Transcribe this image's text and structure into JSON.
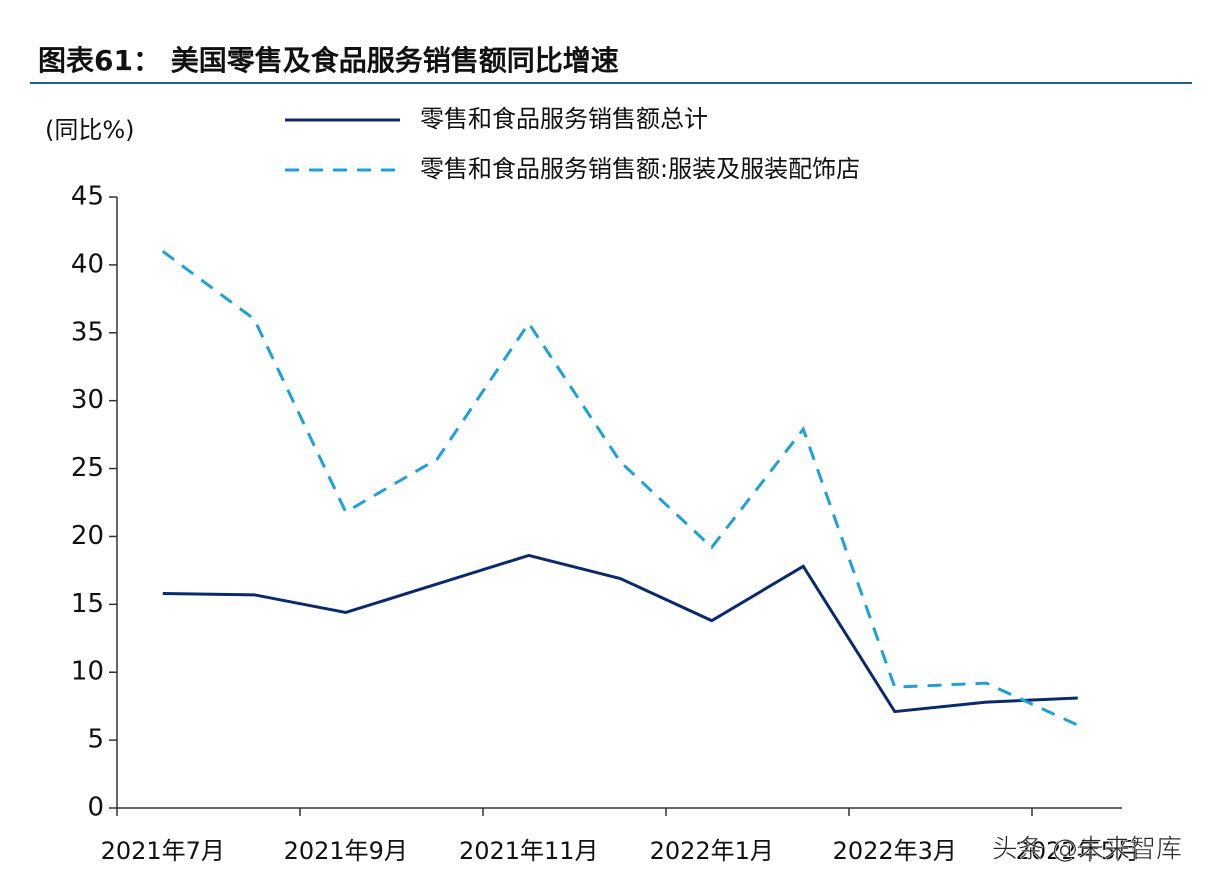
{
  "chart_data": {
    "type": "line",
    "title": "图表61：  美国零售及食品服务销售额同比增速",
    "y_label": "(同比%)",
    "categories": [
      "2021年7月",
      null,
      "2021年9月",
      null,
      "2021年11月",
      null,
      "2022年1月",
      null,
      "2022年3月",
      null,
      "2022年5月"
    ],
    "series": [
      {
        "name": "零售和食品服务销售额总计",
        "color": "#0b2a6b",
        "dash": false,
        "values": [
          15.8,
          15.7,
          14.4,
          16.5,
          18.6,
          16.9,
          13.8,
          17.8,
          7.1,
          7.8,
          8.1
        ]
      },
      {
        "name": "零售和食品服务销售额:服装及服装配饰店",
        "color": "#1ea0db",
        "dash": true,
        "values": [
          41.0,
          36.0,
          21.8,
          25.7,
          35.7,
          25.5,
          19.2,
          27.9,
          8.9,
          9.2,
          6.1
        ]
      }
    ],
    "ylim": [
      0,
      45
    ],
    "yticks": [
      0,
      5,
      10,
      15,
      20,
      25,
      30,
      35,
      40,
      45
    ],
    "watermark": "头条 @未来智库"
  }
}
